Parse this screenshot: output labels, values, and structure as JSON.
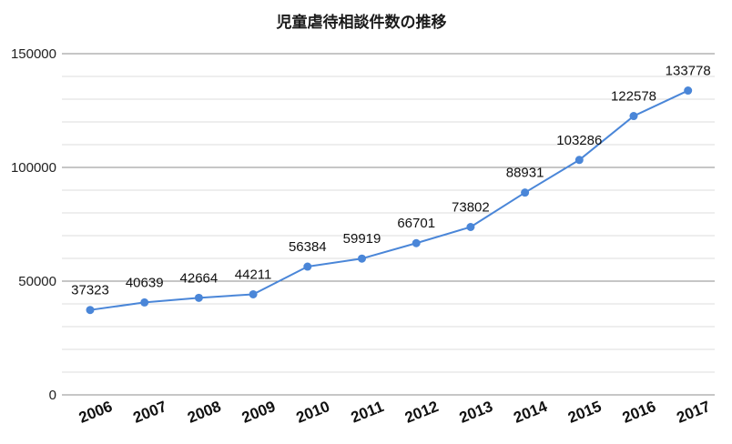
{
  "chart_data": {
    "type": "line",
    "title": "児童虐待相談件数の推移",
    "xlabel": "",
    "ylabel": "",
    "categories": [
      "2006",
      "2007",
      "2008",
      "2009",
      "2010",
      "2011",
      "2012",
      "2013",
      "2014",
      "2015",
      "2016",
      "2017"
    ],
    "series": [
      {
        "values": [
          37323,
          40639,
          42664,
          44211,
          56384,
          59919,
          66701,
          73802,
          88931,
          103286,
          122578,
          133778
        ],
        "color": "#4a86d8"
      }
    ],
    "ylim": [
      0,
      150000
    ],
    "yticks": [
      "0",
      "50000",
      "100000",
      "150000"
    ],
    "grid": true,
    "legend": "none",
    "data_labels": true
  }
}
